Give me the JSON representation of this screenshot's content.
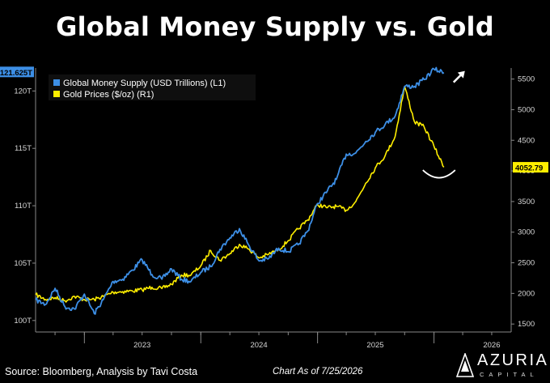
{
  "title": "Global Money Supply vs. Gold",
  "footer": {
    "source": "Source: Bloomberg, Analysis by Tavi Costa",
    "chart_date": "Chart As of 7/25/2026"
  },
  "brand": {
    "name": "AZURIA",
    "sub": "CAPITAL"
  },
  "colors": {
    "background": "#000000",
    "money_supply": "#3d8fe6",
    "gold": "#ffee00",
    "axis": "#888888",
    "grid": "#3a3a3a"
  },
  "chart_data": {
    "type": "line",
    "title": "Global Money Supply vs. Gold",
    "x_axis": {
      "type": "date",
      "range": [
        "2022-08-01",
        "2026-08-31"
      ],
      "tick_labels": [
        "2023",
        "2024",
        "2025",
        "2026"
      ]
    },
    "y_left": {
      "label": "",
      "range": [
        99,
        122
      ],
      "ticks": [
        100,
        105,
        110,
        115,
        120
      ],
      "tick_labels": [
        "100T",
        "105T",
        "110T",
        "115T",
        "120T"
      ],
      "current_value_label": "121.625T"
    },
    "y_right": {
      "label": "",
      "range": [
        1370,
        5680
      ],
      "ticks": [
        1500,
        2000,
        2500,
        3000,
        3500,
        4000,
        4500,
        5000,
        5500
      ],
      "tick_labels": [
        "1500",
        "2000",
        "2500",
        "3000",
        "3500",
        "4000",
        "4500",
        "5000",
        "5500"
      ],
      "current_value_label": "4052.79"
    },
    "legend": {
      "position": "top-left",
      "entries": [
        "Global Money Supply (USD Trillions) (L1)",
        "Gold Prices ($/oz) (R1)"
      ]
    },
    "grid": false,
    "series": [
      {
        "name": "Global Money Supply (USD Trillions) (L1)",
        "axis": "left",
        "x": [
          "2022-08-01",
          "2022-09-01",
          "2022-10-01",
          "2022-11-01",
          "2022-12-01",
          "2023-01-01",
          "2023-02-01",
          "2023-03-01",
          "2023-04-01",
          "2023-05-01",
          "2023-06-01",
          "2023-07-01",
          "2023-08-01",
          "2023-09-01",
          "2023-10-01",
          "2023-11-01",
          "2023-12-01",
          "2024-01-01",
          "2024-02-01",
          "2024-03-01",
          "2024-04-01",
          "2024-05-01",
          "2024-06-01",
          "2024-07-01",
          "2024-08-01",
          "2024-09-01",
          "2024-10-01",
          "2024-11-01",
          "2024-12-01",
          "2025-01-01",
          "2025-02-01",
          "2025-03-01",
          "2025-04-01",
          "2025-05-01",
          "2025-06-01",
          "2025-07-01",
          "2025-08-01",
          "2025-09-01",
          "2025-10-01",
          "2025-11-01",
          "2025-12-01",
          "2026-01-01",
          "2026-02-01"
        ],
        "values": [
          101.8,
          101.4,
          102.8,
          101.2,
          101.0,
          102.3,
          100.6,
          101.8,
          103.4,
          103.6,
          104.4,
          105.3,
          104.0,
          103.6,
          104.5,
          103.6,
          103.4,
          104.2,
          104.7,
          106.2,
          107.2,
          108.0,
          106.5,
          105.2,
          105.4,
          106.3,
          106.0,
          106.6,
          107.8,
          110.2,
          111.3,
          112.3,
          114.5,
          114.6,
          115.6,
          116.4,
          117.1,
          117.8,
          120.4,
          120.4,
          121.0,
          121.9,
          121.6
        ]
      },
      {
        "name": "Gold Prices ($/oz) (R1)",
        "axis": "right",
        "x": [
          "2022-08-01",
          "2022-09-01",
          "2022-10-01",
          "2022-11-01",
          "2022-12-01",
          "2023-01-01",
          "2023-02-01",
          "2023-03-01",
          "2023-04-01",
          "2023-05-01",
          "2023-06-01",
          "2023-07-01",
          "2023-08-01",
          "2023-09-01",
          "2023-10-01",
          "2023-11-01",
          "2023-12-01",
          "2024-01-01",
          "2024-02-01",
          "2024-03-01",
          "2024-04-01",
          "2024-05-01",
          "2024-06-01",
          "2024-07-01",
          "2024-08-01",
          "2024-09-01",
          "2024-10-01",
          "2024-11-01",
          "2024-12-01",
          "2025-01-01",
          "2025-02-01",
          "2025-03-01",
          "2025-04-01",
          "2025-05-01",
          "2025-06-01",
          "2025-07-01",
          "2025-08-01",
          "2025-09-01",
          "2025-10-01",
          "2025-11-01",
          "2025-12-01",
          "2026-01-01",
          "2026-02-01"
        ],
        "values": [
          1980,
          1900,
          1930,
          1880,
          1950,
          1900,
          1900,
          1950,
          2020,
          2030,
          2040,
          2060,
          2100,
          2080,
          2150,
          2300,
          2300,
          2450,
          2700,
          2540,
          2650,
          2800,
          2720,
          2580,
          2640,
          2720,
          2860,
          3050,
          3200,
          3450,
          3400,
          3420,
          3360,
          3500,
          3800,
          4050,
          4250,
          4560,
          5380,
          4800,
          4720,
          4400,
          4060
        ]
      }
    ],
    "annotations": [
      {
        "type": "arrow",
        "direction": "up-right",
        "near_series": "Global Money Supply (USD Trillions) (L1)"
      },
      {
        "type": "arc",
        "near_series": "Gold Prices ($/oz) (R1)"
      }
    ]
  }
}
